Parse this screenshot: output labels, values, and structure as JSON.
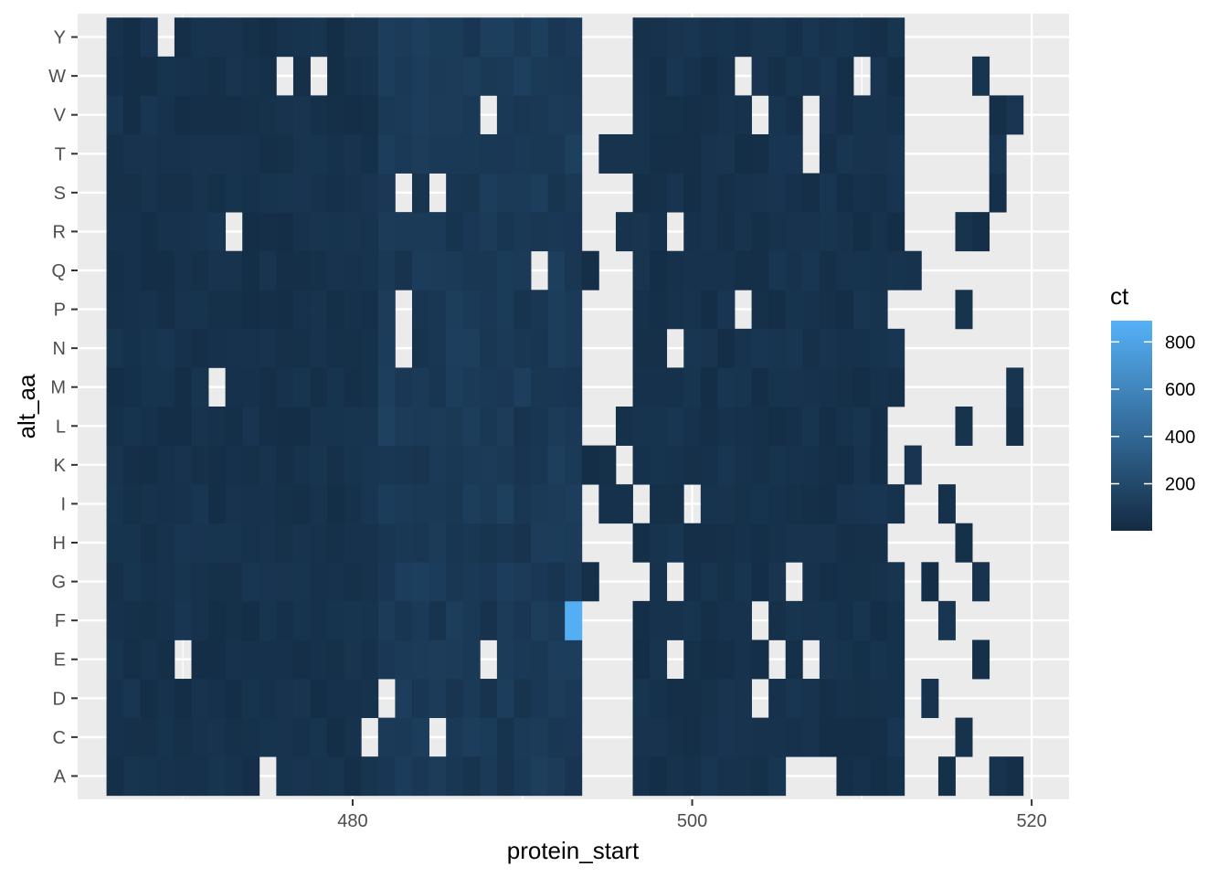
{
  "chart_data": {
    "type": "heatmap",
    "xlabel": "protein_start",
    "ylabel": "alt_aa",
    "x_range": [
      466,
      520
    ],
    "x_axis_limits": [
      463.8,
      522.2
    ],
    "x_ticks": [
      480,
      500,
      520
    ],
    "y_categories": [
      "A",
      "C",
      "D",
      "E",
      "F",
      "G",
      "H",
      "I",
      "K",
      "L",
      "M",
      "N",
      "P",
      "Q",
      "R",
      "S",
      "T",
      "V",
      "W",
      "Y"
    ],
    "legend": {
      "title": "ct",
      "min": 1,
      "max": 890,
      "ticks": [
        200,
        400,
        600,
        800
      ],
      "low_color": "#132b43",
      "high_color": "#56b1f7",
      "position": "right"
    },
    "panel_background": "#ebebeb",
    "grid": true,
    "missing_note": "cells listed in 'missing' (per row, x positions) are absent (no tile)",
    "rows": {
      "Y": {
        "present_ranges": [
          [
            466,
            493
          ],
          [
            497,
            512
          ]
        ],
        "missing": [
          469
        ]
      },
      "W": {
        "present_ranges": [
          [
            466,
            493
          ],
          [
            497,
            512
          ],
          [
            517,
            517
          ]
        ],
        "missing": [
          476,
          478,
          503,
          510
        ]
      },
      "V": {
        "present_ranges": [
          [
            466,
            493
          ],
          [
            497,
            512
          ],
          [
            518,
            519
          ]
        ],
        "missing": [
          488,
          504,
          507
        ]
      },
      "T": {
        "present_ranges": [
          [
            466,
            493
          ],
          [
            495,
            512
          ],
          [
            518,
            518
          ]
        ],
        "missing": [
          507
        ]
      },
      "S": {
        "present_ranges": [
          [
            466,
            493
          ],
          [
            497,
            512
          ],
          [
            518,
            518
          ]
        ],
        "missing": [
          483,
          485
        ]
      },
      "R": {
        "present_ranges": [
          [
            466,
            493
          ],
          [
            496,
            512
          ],
          [
            516,
            517
          ]
        ],
        "missing": [
          473,
          499
        ]
      },
      "Q": {
        "present_ranges": [
          [
            466,
            494
          ],
          [
            497,
            513
          ]
        ],
        "missing": [
          491
        ]
      },
      "P": {
        "present_ranges": [
          [
            466,
            493
          ],
          [
            497,
            511
          ],
          [
            516,
            516
          ]
        ],
        "missing": [
          483,
          503
        ]
      },
      "N": {
        "present_ranges": [
          [
            466,
            493
          ],
          [
            497,
            512
          ]
        ],
        "missing": [
          483,
          499
        ]
      },
      "M": {
        "present_ranges": [
          [
            466,
            493
          ],
          [
            497,
            512
          ],
          [
            519,
            519
          ]
        ],
        "missing": [
          472
        ]
      },
      "L": {
        "present_ranges": [
          [
            466,
            493
          ],
          [
            496,
            511
          ],
          [
            516,
            516
          ],
          [
            519,
            519
          ]
        ],
        "missing": []
      },
      "K": {
        "present_ranges": [
          [
            466,
            495
          ],
          [
            497,
            511
          ],
          [
            513,
            513
          ]
        ],
        "missing": []
      },
      "I": {
        "present_ranges": [
          [
            466,
            493
          ],
          [
            495,
            496
          ],
          [
            498,
            499
          ],
          [
            501,
            512
          ],
          [
            515,
            515
          ]
        ],
        "missing": []
      },
      "H": {
        "present_ranges": [
          [
            466,
            493
          ],
          [
            497,
            511
          ],
          [
            516,
            516
          ]
        ],
        "missing": []
      },
      "G": {
        "present_ranges": [
          [
            466,
            494
          ],
          [
            498,
            498
          ],
          [
            500,
            505
          ],
          [
            507,
            512
          ],
          [
            514,
            514
          ],
          [
            517,
            517
          ]
        ],
        "missing": []
      },
      "F": {
        "present_ranges": [
          [
            466,
            493
          ],
          [
            497,
            512
          ],
          [
            515,
            515
          ]
        ],
        "missing": [
          504
        ]
      },
      "E": {
        "present_ranges": [
          [
            466,
            493
          ],
          [
            497,
            512
          ],
          [
            517,
            517
          ]
        ],
        "missing": [
          470,
          488,
          499,
          505,
          507
        ]
      },
      "D": {
        "present_ranges": [
          [
            466,
            493
          ],
          [
            497,
            512
          ],
          [
            514,
            514
          ]
        ],
        "missing": [
          482,
          504
        ]
      },
      "C": {
        "present_ranges": [
          [
            466,
            493
          ],
          [
            497,
            512
          ],
          [
            516,
            516
          ]
        ],
        "missing": [
          481,
          485
        ]
      },
      "A": {
        "present_ranges": [
          [
            466,
            474
          ],
          [
            476,
            493
          ],
          [
            497,
            505
          ],
          [
            509,
            512
          ],
          [
            515,
            515
          ],
          [
            518,
            519
          ]
        ],
        "missing": []
      }
    },
    "highlight": {
      "x": 493,
      "y": "F",
      "value": 870
    }
  }
}
